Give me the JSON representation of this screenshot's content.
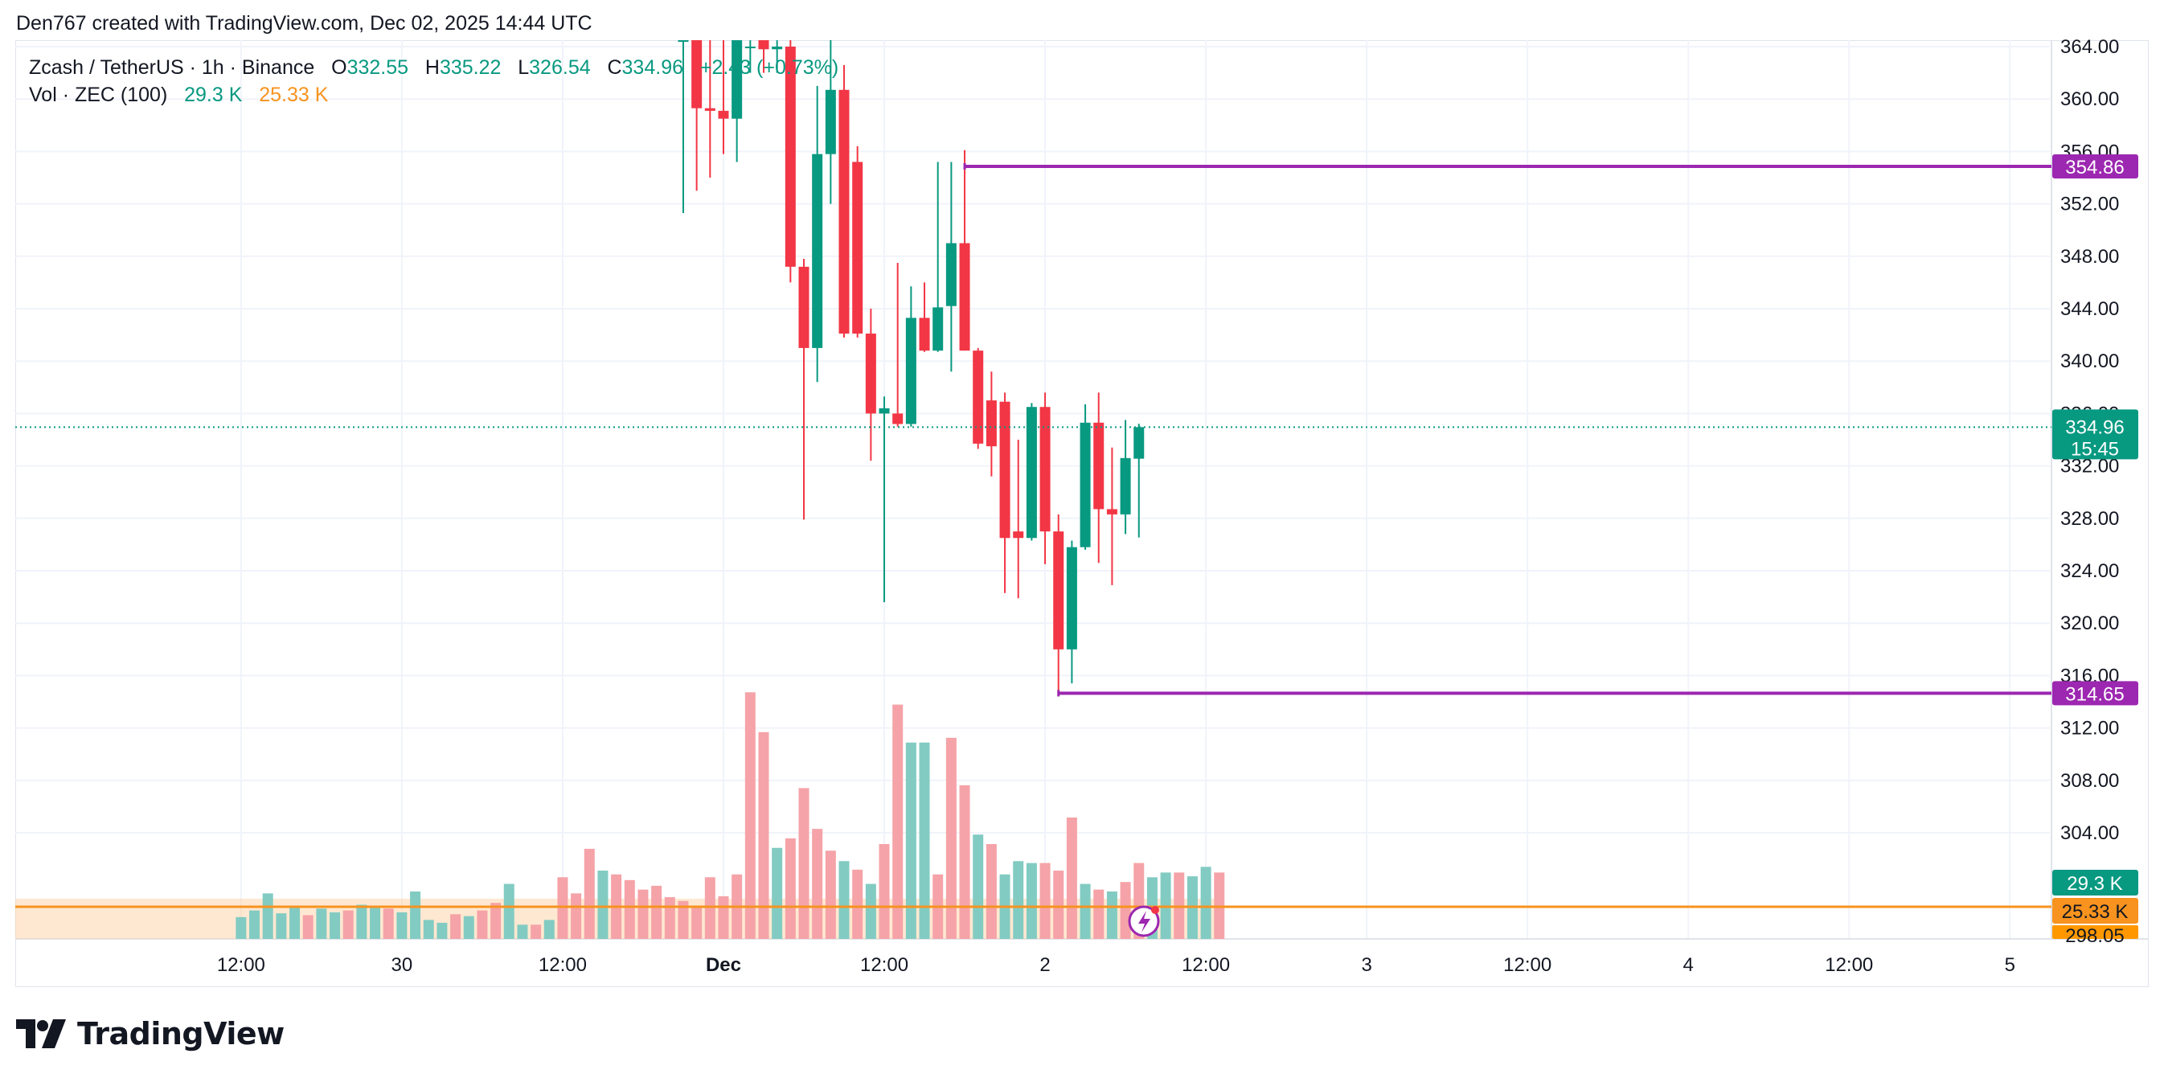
{
  "header": {
    "title": "Den767 created with TradingView.com, Dec 02, 2025 14:44 UTC"
  },
  "legend": {
    "symbol": "Zcash / TetherUS · 1h · Binance",
    "o_label": "O",
    "o_value": "332.55",
    "h_label": "H",
    "h_value": "335.22",
    "l_label": "L",
    "l_value": "326.54",
    "c_label": "C",
    "c_value": "334.96",
    "change": "+2.43 (+0.73%)",
    "vol_label": "Vol · ZEC (100)",
    "vol_value": "29.3 K",
    "vol_ma_value": "25.33 K"
  },
  "footer": {
    "brand": "TradingView"
  },
  "colors": {
    "up": "#089981",
    "down": "#f23645",
    "level_line": "#9c27b0",
    "vol_ma": "#f7931e",
    "vol_up": "#82cbc2",
    "vol_down": "#f5a3a8",
    "grid": "#f0f3fa"
  },
  "chart_data": {
    "type": "candlestick",
    "y_range": [
      297,
      364.5
    ],
    "y_ticks": [
      "364.00",
      "360.00",
      "356.00",
      "352.00",
      "348.00",
      "344.00",
      "340.00",
      "336.00",
      "332.00",
      "328.00",
      "324.00",
      "320.00",
      "316.00",
      "312.00",
      "308.00",
      "304.00"
    ],
    "x_ticks": [
      {
        "label": "12:00",
        "bar": -42
      },
      {
        "label": "30",
        "bar": -30
      },
      {
        "label": "12:00",
        "bar": -18
      },
      {
        "label": "Dec",
        "bar": -6
      },
      {
        "label": "12:00",
        "bar": 6
      },
      {
        "label": "2",
        "bar": 18
      },
      {
        "label": "12:00",
        "bar": 30
      },
      {
        "label": "3",
        "bar": 42
      },
      {
        "label": "12:00",
        "bar": 54
      },
      {
        "label": "4",
        "bar": 66
      },
      {
        "label": "12:00",
        "bar": 78
      },
      {
        "label": "5",
        "bar": 90
      }
    ],
    "candles": [
      {
        "bar": -9,
        "o": 364.5,
        "h": 364.5,
        "l": 351.3,
        "c": 364.5
      },
      {
        "bar": -8,
        "o": 364.5,
        "h": 364.5,
        "l": 353.0,
        "c": 359.3
      },
      {
        "bar": -7,
        "o": 359.3,
        "h": 364.5,
        "l": 354.0,
        "c": 359.1
      },
      {
        "bar": -6,
        "o": 359.1,
        "h": 364.5,
        "l": 355.8,
        "c": 358.5
      },
      {
        "bar": -5,
        "o": 358.5,
        "h": 364.5,
        "l": 355.2,
        "c": 364.5
      },
      {
        "bar": -4,
        "o": 364.0,
        "h": 364.5,
        "l": 362.0,
        "c": 364.0
      },
      {
        "bar": -3,
        "o": 364.5,
        "h": 364.5,
        "l": 362.0,
        "c": 363.8
      },
      {
        "bar": -2,
        "o": 363.8,
        "h": 364.5,
        "l": 362.0,
        "c": 364.0
      },
      {
        "bar": -1,
        "o": 364.0,
        "h": 364.5,
        "l": 346.0,
        "c": 347.2
      },
      {
        "bar": 0,
        "o": 347.2,
        "h": 347.8,
        "l": 327.9,
        "c": 341.0
      },
      {
        "bar": 1,
        "o": 341.0,
        "h": 361.0,
        "l": 338.4,
        "c": 355.8
      },
      {
        "bar": 2,
        "o": 355.8,
        "h": 364.5,
        "l": 352.0,
        "c": 360.7
      },
      {
        "bar": 3,
        "o": 360.7,
        "h": 362.6,
        "l": 341.8,
        "c": 342.1
      },
      {
        "bar": 4,
        "o": 355.2,
        "h": 356.4,
        "l": 341.8,
        "c": 342.1
      },
      {
        "bar": 5,
        "o": 342.1,
        "h": 344.0,
        "l": 332.4,
        "c": 336.0
      },
      {
        "bar": 6,
        "o": 336.0,
        "h": 337.3,
        "l": 321.6,
        "c": 336.4
      },
      {
        "bar": 7,
        "o": 336.0,
        "h": 347.5,
        "l": 335.0,
        "c": 335.2
      },
      {
        "bar": 8,
        "o": 335.2,
        "h": 345.7,
        "l": 335.0,
        "c": 343.3
      },
      {
        "bar": 9,
        "o": 343.3,
        "h": 346.0,
        "l": 340.7,
        "c": 340.8
      },
      {
        "bar": 10,
        "o": 340.8,
        "h": 355.2,
        "l": 340.7,
        "c": 344.1
      },
      {
        "bar": 11,
        "o": 344.2,
        "h": 355.2,
        "l": 339.2,
        "c": 349.0
      },
      {
        "bar": 12,
        "o": 349.0,
        "h": 356.1,
        "l": 340.8,
        "c": 340.8
      },
      {
        "bar": 13,
        "o": 340.8,
        "h": 341.0,
        "l": 333.3,
        "c": 333.7
      },
      {
        "bar": 14,
        "o": 337.0,
        "h": 339.2,
        "l": 331.2,
        "c": 333.5
      },
      {
        "bar": 15,
        "o": 336.9,
        "h": 337.6,
        "l": 322.3,
        "c": 326.5
      },
      {
        "bar": 16,
        "o": 327.0,
        "h": 334.0,
        "l": 321.9,
        "c": 326.5
      },
      {
        "bar": 17,
        "o": 326.5,
        "h": 336.8,
        "l": 326.3,
        "c": 336.5
      },
      {
        "bar": 18,
        "o": 336.5,
        "h": 337.6,
        "l": 324.5,
        "c": 327.0
      },
      {
        "bar": 19,
        "o": 327.0,
        "h": 328.3,
        "l": 314.6,
        "c": 318.0
      },
      {
        "bar": 20,
        "o": 318.0,
        "h": 326.3,
        "l": 315.4,
        "c": 325.8
      },
      {
        "bar": 21,
        "o": 325.8,
        "h": 336.7,
        "l": 325.6,
        "c": 335.3
      },
      {
        "bar": 22,
        "o": 335.3,
        "h": 337.6,
        "l": 324.6,
        "c": 328.7
      },
      {
        "bar": 23,
        "o": 328.7,
        "h": 333.4,
        "l": 322.9,
        "c": 328.3
      },
      {
        "bar": 24,
        "o": 328.3,
        "h": 335.5,
        "l": 326.8,
        "c": 332.6
      },
      {
        "bar": 25,
        "o": 332.55,
        "h": 335.22,
        "l": 326.54,
        "c": 334.96
      }
    ],
    "volume": {
      "max_k": 250,
      "bars": [
        {
          "bar": -42,
          "v": 23,
          "up": true
        },
        {
          "bar": -41,
          "v": 30,
          "up": true
        },
        {
          "bar": -40,
          "v": 48,
          "up": true
        },
        {
          "bar": -39,
          "v": 27,
          "up": true
        },
        {
          "bar": -38,
          "v": 34,
          "up": true
        },
        {
          "bar": -37,
          "v": 25,
          "up": false
        },
        {
          "bar": -36,
          "v": 32,
          "up": true
        },
        {
          "bar": -35,
          "v": 28,
          "up": true
        },
        {
          "bar": -34,
          "v": 30,
          "up": false
        },
        {
          "bar": -33,
          "v": 36,
          "up": true
        },
        {
          "bar": -32,
          "v": 34,
          "up": true
        },
        {
          "bar": -31,
          "v": 32,
          "up": false
        },
        {
          "bar": -30,
          "v": 28,
          "up": true
        },
        {
          "bar": -29,
          "v": 50,
          "up": true
        },
        {
          "bar": -28,
          "v": 20,
          "up": true
        },
        {
          "bar": -27,
          "v": 17,
          "up": true
        },
        {
          "bar": -26,
          "v": 26,
          "up": false
        },
        {
          "bar": -25,
          "v": 24,
          "up": true
        },
        {
          "bar": -24,
          "v": 30,
          "up": false
        },
        {
          "bar": -23,
          "v": 38,
          "up": false
        },
        {
          "bar": -22,
          "v": 58,
          "up": true
        },
        {
          "bar": -21,
          "v": 15,
          "up": true
        },
        {
          "bar": -20,
          "v": 15,
          "up": false
        },
        {
          "bar": -19,
          "v": 20,
          "up": true
        },
        {
          "bar": -18,
          "v": 65,
          "up": false
        },
        {
          "bar": -17,
          "v": 48,
          "up": false
        },
        {
          "bar": -16,
          "v": 95,
          "up": false
        },
        {
          "bar": -15,
          "v": 72,
          "up": true
        },
        {
          "bar": -14,
          "v": 68,
          "up": false
        },
        {
          "bar": -13,
          "v": 62,
          "up": false
        },
        {
          "bar": -12,
          "v": 52,
          "up": false
        },
        {
          "bar": -11,
          "v": 56,
          "up": false
        },
        {
          "bar": -10,
          "v": 44,
          "up": false
        },
        {
          "bar": -9,
          "v": 40,
          "up": false
        },
        {
          "bar": -8,
          "v": 35,
          "up": false
        },
        {
          "bar": -7,
          "v": 65,
          "up": false
        },
        {
          "bar": -6,
          "v": 45,
          "up": false
        },
        {
          "bar": -5,
          "v": 68,
          "up": false
        },
        {
          "bar": -4,
          "v": 260,
          "up": false
        },
        {
          "bar": -3,
          "v": 218,
          "up": false
        },
        {
          "bar": -2,
          "v": 96,
          "up": true
        },
        {
          "bar": -1,
          "v": 106,
          "up": false
        },
        {
          "bar": 0,
          "v": 159,
          "up": false
        },
        {
          "bar": 1,
          "v": 116,
          "up": false
        },
        {
          "bar": 2,
          "v": 93,
          "up": false
        },
        {
          "bar": 3,
          "v": 82,
          "up": true
        },
        {
          "bar": 4,
          "v": 73,
          "up": false
        },
        {
          "bar": 5,
          "v": 58,
          "up": true
        },
        {
          "bar": 6,
          "v": 100,
          "up": false
        },
        {
          "bar": 7,
          "v": 247,
          "up": false
        },
        {
          "bar": 8,
          "v": 207,
          "up": true
        },
        {
          "bar": 9,
          "v": 207,
          "up": true
        },
        {
          "bar": 10,
          "v": 68,
          "up": false
        },
        {
          "bar": 11,
          "v": 212,
          "up": false
        },
        {
          "bar": 12,
          "v": 162,
          "up": false
        },
        {
          "bar": 13,
          "v": 110,
          "up": true
        },
        {
          "bar": 14,
          "v": 100,
          "up": false
        },
        {
          "bar": 15,
          "v": 68,
          "up": true
        },
        {
          "bar": 16,
          "v": 82,
          "up": true
        },
        {
          "bar": 17,
          "v": 80,
          "up": true
        },
        {
          "bar": 18,
          "v": 80,
          "up": false
        },
        {
          "bar": 19,
          "v": 72,
          "up": false
        },
        {
          "bar": 20,
          "v": 128,
          "up": false
        },
        {
          "bar": 21,
          "v": 58,
          "up": true
        },
        {
          "bar": 22,
          "v": 52,
          "up": false
        },
        {
          "bar": 23,
          "v": 50,
          "up": true
        },
        {
          "bar": 24,
          "v": 60,
          "up": false
        },
        {
          "bar": 25,
          "v": 80,
          "up": false
        },
        {
          "bar": 26,
          "v": 65,
          "up": true
        },
        {
          "bar": 27,
          "v": 70,
          "up": true
        },
        {
          "bar": 28,
          "v": 70,
          "up": false
        },
        {
          "bar": 29,
          "v": 66,
          "up": true
        },
        {
          "bar": 30,
          "v": 76,
          "up": true
        },
        {
          "bar": 31,
          "v": 70,
          "up": false
        }
      ],
      "ma_k": 25.33,
      "last_k": 29.3
    },
    "levels": [
      {
        "price": 354.86,
        "label": "354.86",
        "from_bar": 12
      },
      {
        "price": 314.65,
        "label": "314.65",
        "from_bar": 19
      }
    ],
    "last_price": {
      "price": 334.96,
      "label": "334.96",
      "countdown": "15:45"
    },
    "axis_badges": {
      "vol_last": "29.3 K",
      "vol_ma": "25.33 K",
      "bottom_price": "298.05"
    }
  }
}
